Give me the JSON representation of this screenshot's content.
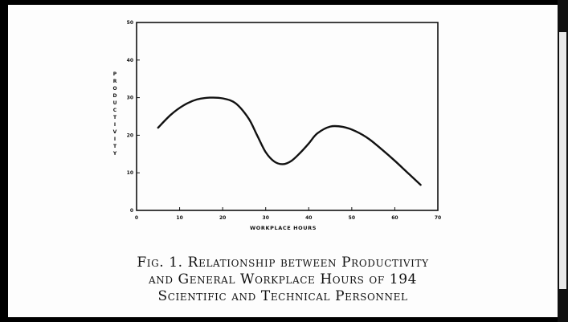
{
  "chart_data": {
    "type": "line",
    "title": "",
    "xlabel": "WORKPLACE HOURS",
    "ylabel": "PRODUCTIVITY",
    "xlim": [
      0,
      70
    ],
    "ylim": [
      0,
      50
    ],
    "xticks": [
      "0",
      "10",
      "20",
      "30",
      "40",
      "50",
      "60",
      "70"
    ],
    "yticks": [
      "0",
      "10",
      "20",
      "30",
      "40",
      "50"
    ],
    "grid": false,
    "legend": "none",
    "line_color": "#111111",
    "series": [
      {
        "x": [
          5,
          8,
          11,
          14,
          17,
          20,
          23,
          26,
          28,
          30,
          32,
          34,
          36,
          38,
          40,
          42,
          45,
          48,
          51,
          54,
          57,
          60,
          63,
          66
        ],
        "y": [
          22,
          25.5,
          28,
          29.5,
          30,
          29.8,
          28.5,
          24.5,
          20,
          15.5,
          13,
          12.3,
          13.2,
          15.3,
          17.8,
          20.5,
          22.3,
          22.2,
          21,
          19,
          16.2,
          13.2,
          10,
          6.8
        ]
      }
    ]
  },
  "caption": {
    "line1": "Fig. 1. Relationship between Productivity",
    "line2": "and General Workplace Hours of 194",
    "line3": "Scientific and Technical Personnel"
  }
}
